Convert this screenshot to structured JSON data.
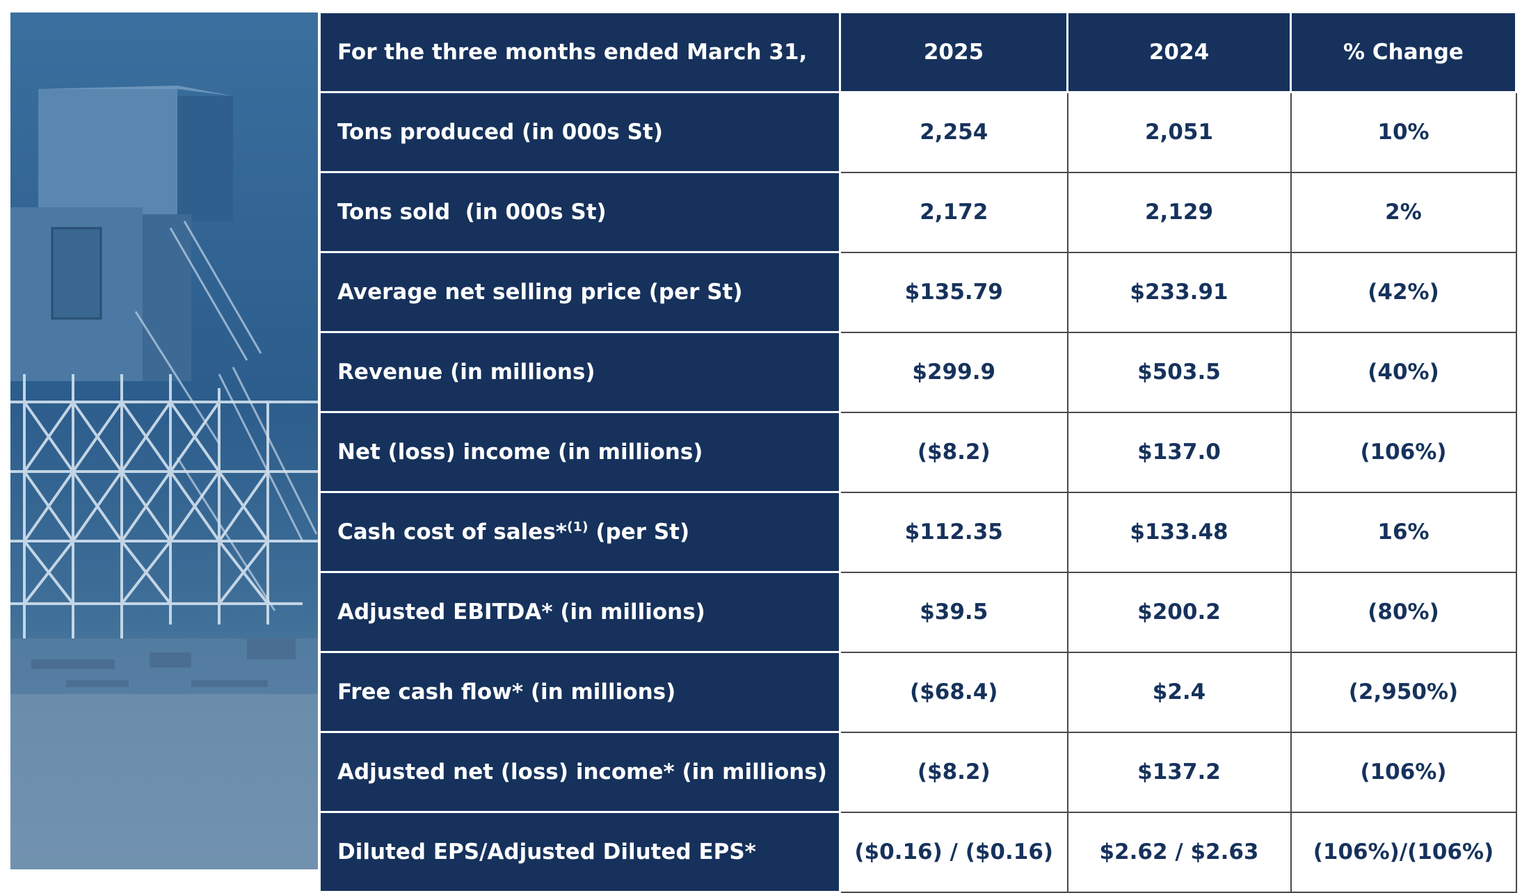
{
  "header": {
    "period": "For the three months ended March 31,",
    "col_2025": "2025",
    "col_2024": "2024",
    "col_change": "% Change"
  },
  "rows": [
    {
      "label": "Tons produced (in 000s St)",
      "v2025": "2,254",
      "v2024": "2,051",
      "change": "10%"
    },
    {
      "label": "Tons sold  (in 000s St)",
      "v2025": "2,172",
      "v2024": "2,129",
      "change": "2%"
    },
    {
      "label": "Average net selling price (per St)",
      "v2025": "$135.79",
      "v2024": "$233.91",
      "change": "(42%)"
    },
    {
      "label": "Revenue (in millions)",
      "v2025": "$299.9",
      "v2024": "$503.5",
      "change": "(40%)"
    },
    {
      "label": "Net (loss) income (in millions)",
      "v2025": "($8.2)",
      "v2024": "$137.0",
      "change": "(106%)"
    },
    {
      "label_pre": "Cash cost of sales*",
      "label_sup": "(1)",
      "label_post": " (per St)",
      "v2025": "$112.35",
      "v2024": "$133.48",
      "change": "16%"
    },
    {
      "label": "Adjusted EBITDA* (in millions)",
      "v2025": "$39.5",
      "v2024": "$200.2",
      "change": "(80%)"
    },
    {
      "label": "Free cash flow* (in millions)",
      "v2025": "($68.4)",
      "v2024": "$2.4",
      "change": "(2,950%)"
    },
    {
      "label": "Adjusted net (loss) income* (in millions)",
      "v2025": "($8.2)",
      "v2024": "$137.2",
      "change": "(106%)"
    },
    {
      "label": "Diluted EPS/Adjusted Diluted EPS*",
      "v2025": "($0.16) / ($0.16)",
      "v2024": "$2.62 / $2.63",
      "change": "(106%)/(106%)"
    }
  ],
  "colors": {
    "navy": "#16325c",
    "photo_tint": "#2c5d8c",
    "text_on_white": "#16325c"
  }
}
